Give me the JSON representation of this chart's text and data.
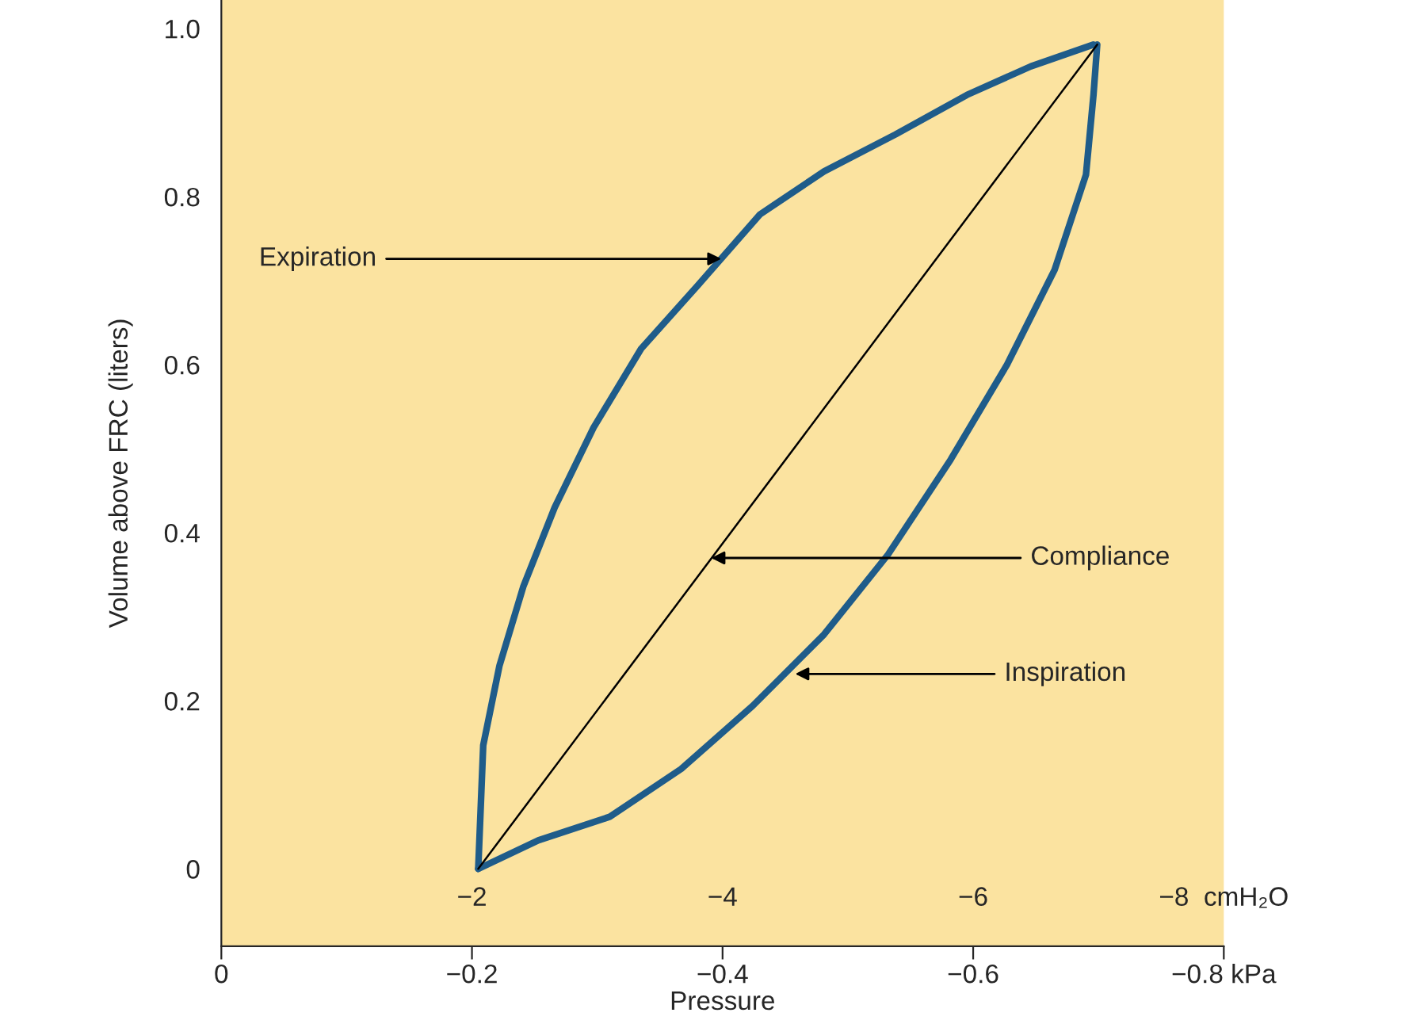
{
  "chart_data": {
    "type": "line",
    "xlabel": "Pressure",
    "ylabel": "Volume above FRC (liters)",
    "xlim": [
      0,
      -0.8
    ],
    "xticks": [
      0,
      {
        "value": -0.2,
        "label": "−0.2"
      },
      {
        "value": -0.4,
        "label": "−0.4"
      },
      {
        "value": -0.6,
        "label": "−0.6"
      },
      {
        "value": -0.8,
        "label": "−0.8 kPa"
      }
    ],
    "x2lim": [
      0,
      -8
    ],
    "x2ticks": [
      {
        "value": -2,
        "label": "−2"
      },
      {
        "value": -4,
        "label": "−4"
      },
      {
        "value": -6,
        "label": "−6"
      },
      {
        "value": -8,
        "label": "−8  cmH₂O"
      }
    ],
    "ylim": [
      -0.092,
      1.034
    ],
    "yticks": [
      0,
      0.2,
      0.4,
      0.6,
      0.8,
      {
        "value": 1,
        "label": "1.0"
      }
    ],
    "grid": false,
    "marker": "none",
    "line_style": "solid",
    "series": [
      {
        "color": "#1f5c8a",
        "x": [
          -0.205,
          -0.209,
          -0.222,
          -0.241,
          -0.266,
          -0.297,
          -0.335,
          -0.38,
          -0.43,
          -0.481,
          -0.538,
          -0.595,
          -0.646,
          -0.696
        ],
        "values": [
          0,
          0.147,
          0.242,
          0.336,
          0.43,
          0.525,
          0.619,
          0.694,
          0.779,
          0.83,
          0.874,
          0.921,
          0.955,
          0.981
        ]
      },
      {
        "color": "#1f5c8a",
        "x": [
          -0.205,
          -0.253,
          -0.31,
          -0.367,
          -0.424,
          -0.481,
          -0.532,
          -0.582,
          -0.627,
          -0.665,
          -0.69,
          -0.696,
          -0.699
        ],
        "values": [
          0,
          0.034,
          0.062,
          0.119,
          0.194,
          0.279,
          0.374,
          0.487,
          0.6,
          0.713,
          0.826,
          0.921,
          0.981
        ]
      },
      {
        "color": "#000000",
        "x": [
          -0.205,
          -0.699
        ],
        "values": [
          0,
          0.981
        ]
      }
    ],
    "annotations": [
      {
        "text": "Expiration",
        "x": -0.399,
        "y": 0.726
      },
      {
        "text": "Compliance",
        "x": -0.391,
        "y": 0.37
      },
      {
        "text": "Inspiration",
        "x": -0.458,
        "y": 0.232
      }
    ]
  }
}
